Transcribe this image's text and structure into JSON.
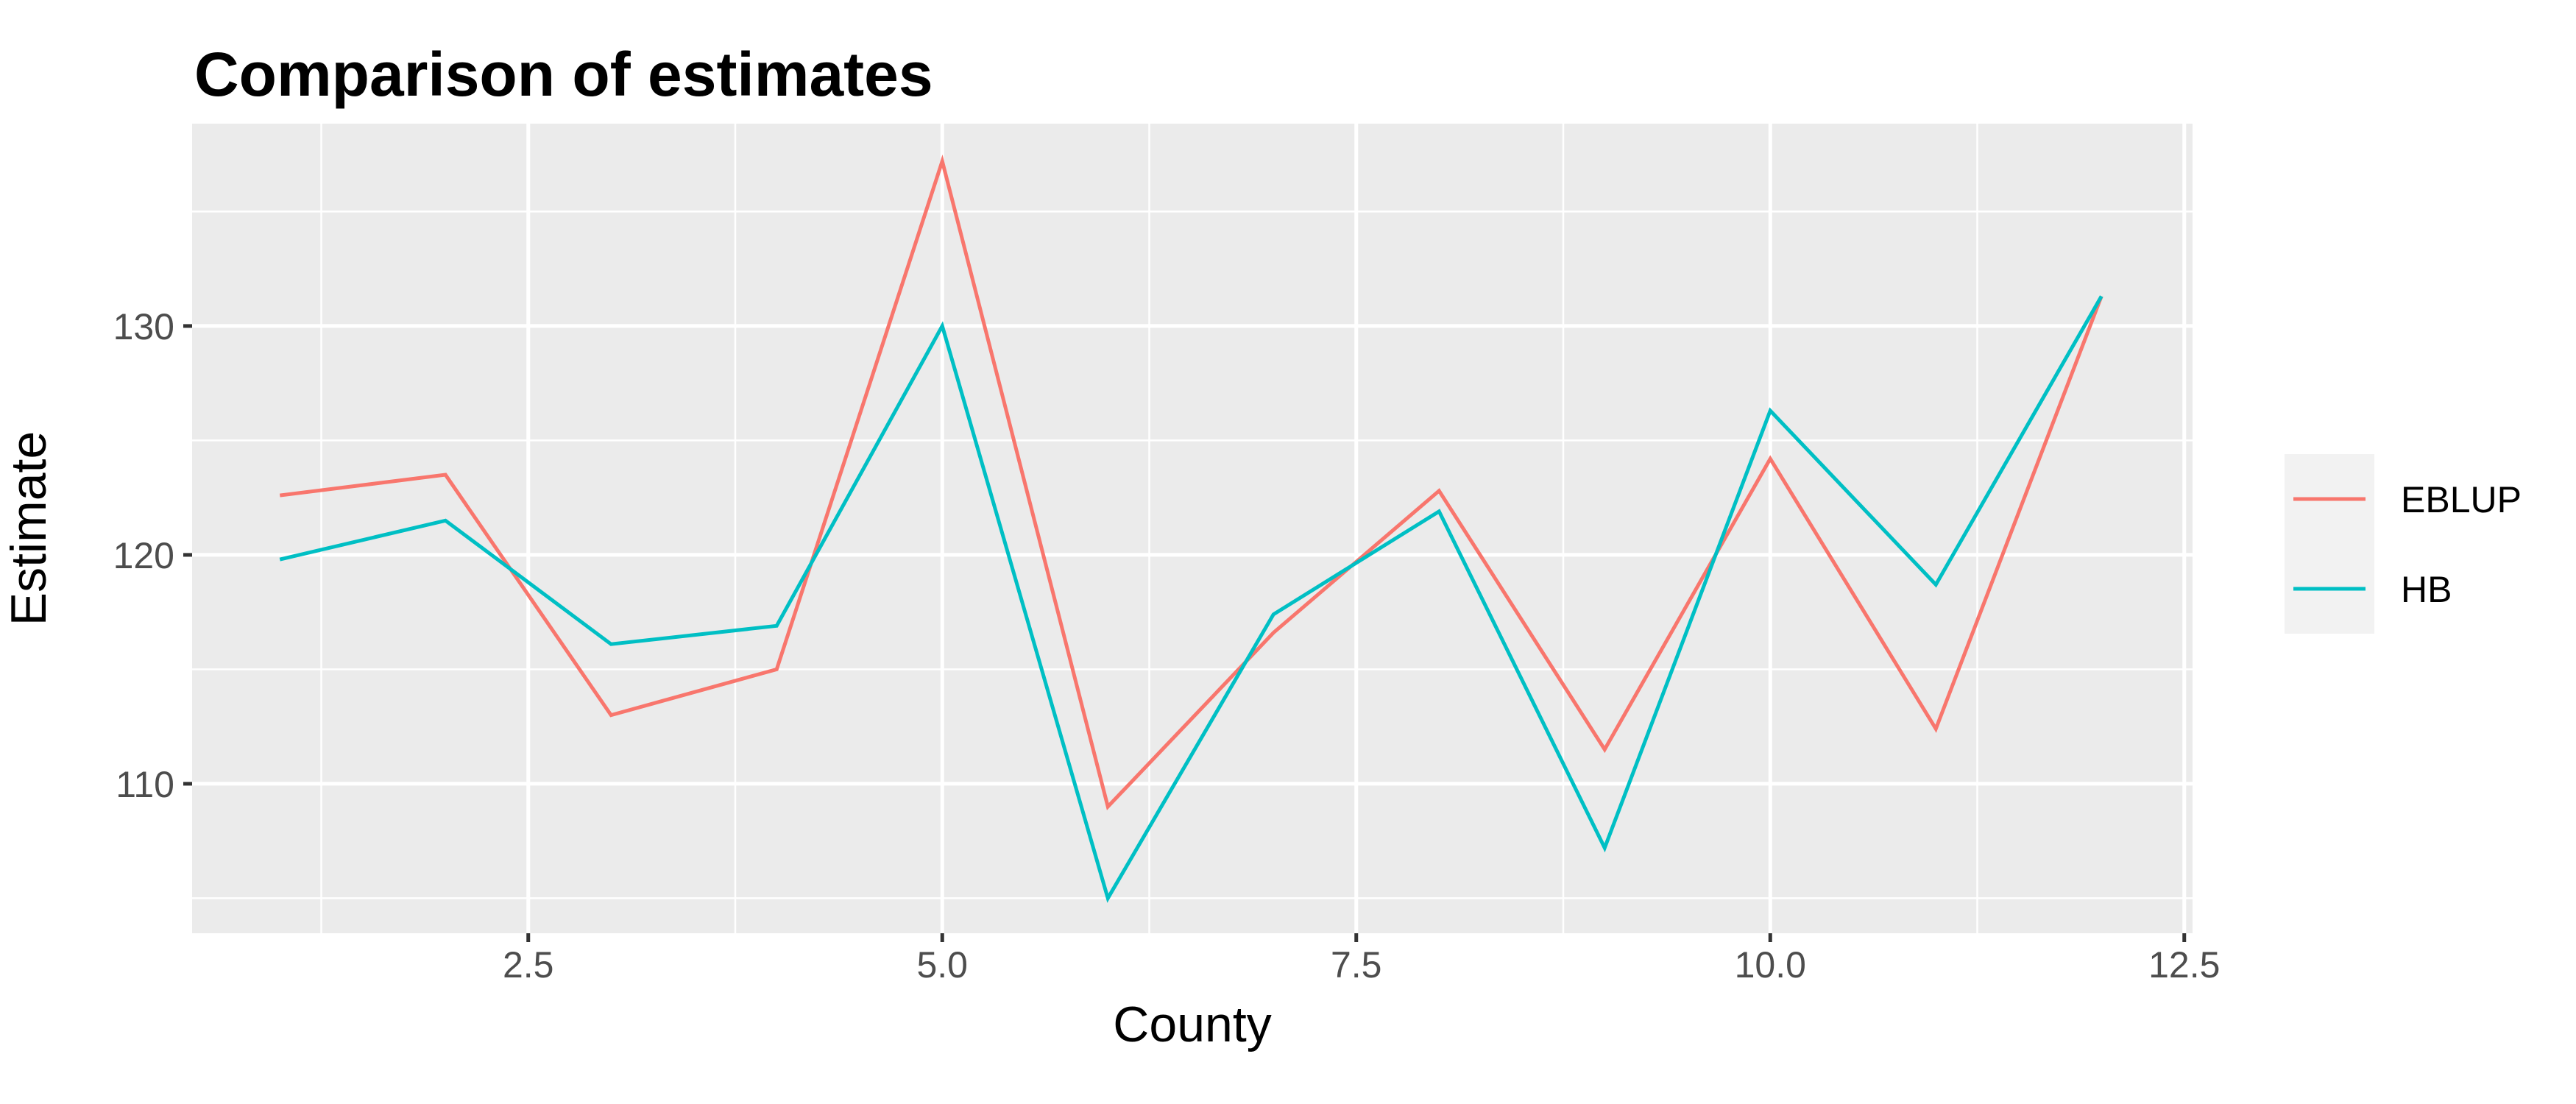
{
  "chart_data": {
    "type": "line",
    "title": "Comparison of estimates",
    "xlabel": "County",
    "ylabel": "Estimate",
    "xlim": [
      0.47,
      12.55
    ],
    "ylim": [
      103.47,
      138.84
    ],
    "xticks": [
      2.5,
      5.0,
      7.5,
      10.0,
      12.5
    ],
    "xtick_labels": [
      "2.5",
      "5.0",
      "7.5",
      "10.0",
      "12.5"
    ],
    "yticks": [
      110,
      120,
      130
    ],
    "ytick_labels": [
      "110",
      "120",
      "130"
    ],
    "grid": true,
    "legend_position": "right",
    "x": [
      1,
      2,
      3,
      4,
      5,
      6,
      7,
      8,
      9,
      10,
      11,
      12
    ],
    "series": [
      {
        "name": "EBLUP",
        "color": "#F8766D",
        "values": [
          122.6,
          123.5,
          113.0,
          115.0,
          137.2,
          109.0,
          116.6,
          122.8,
          111.5,
          124.2,
          112.4,
          131.3
        ]
      },
      {
        "name": "HB",
        "color": "#00BFC4",
        "values": [
          119.8,
          121.5,
          116.1,
          116.9,
          130.0,
          105.0,
          117.4,
          121.9,
          107.2,
          126.3,
          118.7,
          131.3
        ]
      }
    ],
    "panel_background": "#EBEBEB"
  }
}
